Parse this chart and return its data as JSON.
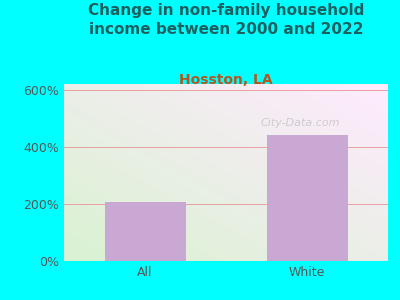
{
  "title": "Change in non-family household\nincome between 2000 and 2022",
  "subtitle": "Hosston, LA",
  "categories": [
    "All",
    "White"
  ],
  "values": [
    205,
    440
  ],
  "bar_color": "#c9a8d4",
  "title_fontsize": 11,
  "subtitle_fontsize": 10,
  "subtitle_color": "#b05820",
  "title_color": "#1a6060",
  "ylim": [
    0,
    620
  ],
  "yticks": [
    0,
    200,
    400,
    600
  ],
  "ytick_labels": [
    "0%",
    "200%",
    "400%",
    "600%"
  ],
  "background_outer": "#00ffff",
  "gridline_color": "#e8a0a0",
  "watermark": "City-Data.com"
}
